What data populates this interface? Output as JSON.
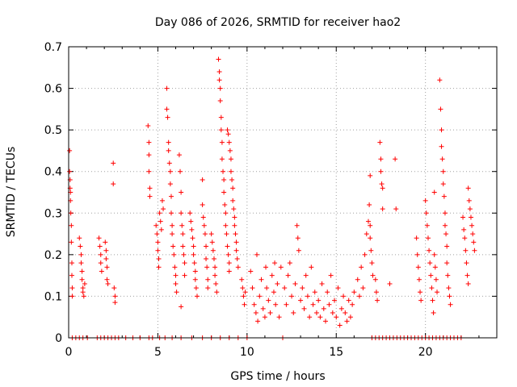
{
  "chart_data": {
    "type": "scatter",
    "title": "Day 086 of 2026, SRMTID for receiver hao2",
    "xlabel": "GPS time / hours",
    "ylabel": "SRMTID / TECUs",
    "xlim": [
      0,
      24
    ],
    "ylim": [
      0,
      0.7
    ],
    "xticks": [
      "0",
      "5",
      "10",
      "15",
      "20"
    ],
    "xtick_values": [
      0,
      5,
      10,
      15,
      20
    ],
    "yticks": [
      "0",
      "0.1",
      "0.2",
      "0.3",
      "0.4",
      "0.5",
      "0.6",
      "0.7"
    ],
    "ytick_values": [
      0,
      0.1,
      0.2,
      0.3,
      0.4,
      0.5,
      0.6,
      0.7
    ],
    "grid": true,
    "legend": "none",
    "marker": "plus",
    "color": "#ff0000",
    "series": [
      {
        "points": [
          [
            0.05,
            0.45
          ],
          [
            0.05,
            0.4
          ],
          [
            0.08,
            0.38
          ],
          [
            0.08,
            0.36
          ],
          [
            0.1,
            0.35
          ],
          [
            0.1,
            0.33
          ],
          [
            0.12,
            0.3
          ],
          [
            0.15,
            0.27
          ],
          [
            0.15,
            0.23
          ],
          [
            0.18,
            0.18
          ],
          [
            0.18,
            0.15
          ],
          [
            0.2,
            0.12
          ],
          [
            0.2,
            0.1
          ],
          [
            0.6,
            0.24
          ],
          [
            0.65,
            0.22
          ],
          [
            0.7,
            0.2
          ],
          [
            0.7,
            0.18
          ],
          [
            0.75,
            0.16
          ],
          [
            0.75,
            0.14
          ],
          [
            0.8,
            0.12
          ],
          [
            0.8,
            0.11
          ],
          [
            0.85,
            0.1
          ],
          [
            0.9,
            0.13
          ],
          [
            1.7,
            0.24
          ],
          [
            1.75,
            0.22
          ],
          [
            1.8,
            0.2
          ],
          [
            1.8,
            0.18
          ],
          [
            1.85,
            0.16
          ],
          [
            2.05,
            0.23
          ],
          [
            2.1,
            0.21
          ],
          [
            2.1,
            0.19
          ],
          [
            2.15,
            0.17
          ],
          [
            2.15,
            0.14
          ],
          [
            2.2,
            0.13
          ],
          [
            2.5,
            0.42
          ],
          [
            2.5,
            0.37
          ],
          [
            2.55,
            0.12
          ],
          [
            2.6,
            0.1
          ],
          [
            2.6,
            0.085
          ],
          [
            4.45,
            0.51
          ],
          [
            4.5,
            0.47
          ],
          [
            4.5,
            0.44
          ],
          [
            4.5,
            0.4
          ],
          [
            4.55,
            0.36
          ],
          [
            4.55,
            0.34
          ],
          [
            4.9,
            0.27
          ],
          [
            4.95,
            0.25
          ],
          [
            5.0,
            0.23
          ],
          [
            5.0,
            0.21
          ],
          [
            5.05,
            0.19
          ],
          [
            5.05,
            0.17
          ],
          [
            5.1,
            0.3
          ],
          [
            5.15,
            0.28
          ],
          [
            5.2,
            0.26
          ],
          [
            5.25,
            0.33
          ],
          [
            5.3,
            0.31
          ],
          [
            5.5,
            0.6
          ],
          [
            5.5,
            0.55
          ],
          [
            5.55,
            0.53
          ],
          [
            5.6,
            0.47
          ],
          [
            5.6,
            0.45
          ],
          [
            5.65,
            0.42
          ],
          [
            5.7,
            0.4
          ],
          [
            5.7,
            0.37
          ],
          [
            5.75,
            0.34
          ],
          [
            5.75,
            0.3
          ],
          [
            5.8,
            0.27
          ],
          [
            5.8,
            0.25
          ],
          [
            5.85,
            0.22
          ],
          [
            5.9,
            0.2
          ],
          [
            5.95,
            0.17
          ],
          [
            6.0,
            0.15
          ],
          [
            6.0,
            0.13
          ],
          [
            6.05,
            0.11
          ],
          [
            6.2,
            0.44
          ],
          [
            6.25,
            0.4
          ],
          [
            6.3,
            0.35
          ],
          [
            6.3,
            0.3
          ],
          [
            6.35,
            0.27
          ],
          [
            6.4,
            0.25
          ],
          [
            6.4,
            0.22
          ],
          [
            6.45,
            0.2
          ],
          [
            6.5,
            0.18
          ],
          [
            6.5,
            0.15
          ],
          [
            6.3,
            0.075
          ],
          [
            6.8,
            0.3
          ],
          [
            6.85,
            0.28
          ],
          [
            6.9,
            0.26
          ],
          [
            6.95,
            0.24
          ],
          [
            7.0,
            0.22
          ],
          [
            7.0,
            0.2
          ],
          [
            7.05,
            0.18
          ],
          [
            7.1,
            0.16
          ],
          [
            7.1,
            0.14
          ],
          [
            7.15,
            0.12
          ],
          [
            7.2,
            0.1
          ],
          [
            7.5,
            0.38
          ],
          [
            7.5,
            0.32
          ],
          [
            7.55,
            0.29
          ],
          [
            7.6,
            0.27
          ],
          [
            7.65,
            0.25
          ],
          [
            7.7,
            0.22
          ],
          [
            7.7,
            0.19
          ],
          [
            7.75,
            0.17
          ],
          [
            7.8,
            0.14
          ],
          [
            7.8,
            0.12
          ],
          [
            8.0,
            0.25
          ],
          [
            8.05,
            0.23
          ],
          [
            8.1,
            0.21
          ],
          [
            8.15,
            0.19
          ],
          [
            8.2,
            0.17
          ],
          [
            8.2,
            0.15
          ],
          [
            8.25,
            0.13
          ],
          [
            8.3,
            0.11
          ],
          [
            8.4,
            0.67
          ],
          [
            8.45,
            0.64
          ],
          [
            8.45,
            0.62
          ],
          [
            8.5,
            0.6
          ],
          [
            8.5,
            0.57
          ],
          [
            8.55,
            0.53
          ],
          [
            8.55,
            0.5
          ],
          [
            8.6,
            0.47
          ],
          [
            8.6,
            0.43
          ],
          [
            8.65,
            0.4
          ],
          [
            8.7,
            0.38
          ],
          [
            8.7,
            0.35
          ],
          [
            8.75,
            0.32
          ],
          [
            8.8,
            0.3
          ],
          [
            8.8,
            0.27
          ],
          [
            8.85,
            0.25
          ],
          [
            8.9,
            0.22
          ],
          [
            8.95,
            0.2
          ],
          [
            9.0,
            0.18
          ],
          [
            9.0,
            0.16
          ],
          [
            8.9,
            0.5
          ],
          [
            8.95,
            0.49
          ],
          [
            9.0,
            0.47
          ],
          [
            9.05,
            0.45
          ],
          [
            9.1,
            0.43
          ],
          [
            9.1,
            0.4
          ],
          [
            9.15,
            0.38
          ],
          [
            9.2,
            0.36
          ],
          [
            9.2,
            0.33
          ],
          [
            9.25,
            0.31
          ],
          [
            9.3,
            0.29
          ],
          [
            9.3,
            0.27
          ],
          [
            9.35,
            0.25
          ],
          [
            9.4,
            0.23
          ],
          [
            9.4,
            0.21
          ],
          [
            9.45,
            0.19
          ],
          [
            9.5,
            0.17
          ],
          [
            9.7,
            0.14
          ],
          [
            9.75,
            0.12
          ],
          [
            9.8,
            0.1
          ],
          [
            9.85,
            0.08
          ],
          [
            9.9,
            0.11
          ],
          [
            10.2,
            0.16
          ],
          [
            10.3,
            0.12
          ],
          [
            10.4,
            0.08
          ],
          [
            10.5,
            0.06
          ],
          [
            10.6,
            0.04
          ],
          [
            10.7,
            0.1
          ],
          [
            10.8,
            0.14
          ],
          [
            10.9,
            0.07
          ],
          [
            11.0,
            0.05
          ],
          [
            11.1,
            0.12
          ],
          [
            11.2,
            0.09
          ],
          [
            11.3,
            0.06
          ],
          [
            11.4,
            0.15
          ],
          [
            11.5,
            0.11
          ],
          [
            11.6,
            0.08
          ],
          [
            11.7,
            0.13
          ],
          [
            11.8,
            0.05
          ],
          [
            11.9,
            0.17
          ],
          [
            10.55,
            0.2
          ],
          [
            11.05,
            0.17
          ],
          [
            11.55,
            0.18
          ],
          [
            12.1,
            0.12
          ],
          [
            12.2,
            0.08
          ],
          [
            12.3,
            0.15
          ],
          [
            12.4,
            0.18
          ],
          [
            12.5,
            0.1
          ],
          [
            12.6,
            0.06
          ],
          [
            12.7,
            0.13
          ],
          [
            12.8,
            0.27
          ],
          [
            12.85,
            0.24
          ],
          [
            12.9,
            0.21
          ],
          [
            13.0,
            0.09
          ],
          [
            13.1,
            0.12
          ],
          [
            13.2,
            0.07
          ],
          [
            13.3,
            0.15
          ],
          [
            13.4,
            0.1
          ],
          [
            13.5,
            0.05
          ],
          [
            13.6,
            0.17
          ],
          [
            13.7,
            0.08
          ],
          [
            13.8,
            0.11
          ],
          [
            13.9,
            0.06
          ],
          [
            14.0,
            0.09
          ],
          [
            14.1,
            0.05
          ],
          [
            14.2,
            0.13
          ],
          [
            14.3,
            0.07
          ],
          [
            14.4,
            0.04
          ],
          [
            14.5,
            0.11
          ],
          [
            14.6,
            0.08
          ],
          [
            14.7,
            0.15
          ],
          [
            14.8,
            0.06
          ],
          [
            14.9,
            0.09
          ],
          [
            15.0,
            0.05
          ],
          [
            15.1,
            0.12
          ],
          [
            15.2,
            0.03
          ],
          [
            15.3,
            0.07
          ],
          [
            15.4,
            0.1
          ],
          [
            15.5,
            0.06
          ],
          [
            15.6,
            0.04
          ],
          [
            15.7,
            0.09
          ],
          [
            15.8,
            0.05
          ],
          [
            15.9,
            0.08
          ],
          [
            16.0,
            0.11
          ],
          [
            16.2,
            0.14
          ],
          [
            16.3,
            0.1
          ],
          [
            16.4,
            0.17
          ],
          [
            16.5,
            0.12
          ],
          [
            16.6,
            0.2
          ],
          [
            16.7,
            0.25
          ],
          [
            16.8,
            0.28
          ],
          [
            16.85,
            0.32
          ],
          [
            16.9,
            0.27
          ],
          [
            16.9,
            0.24
          ],
          [
            16.95,
            0.21
          ],
          [
            17.0,
            0.18
          ],
          [
            17.05,
            0.15
          ],
          [
            16.9,
            0.39
          ],
          [
            17.2,
            0.14
          ],
          [
            17.25,
            0.11
          ],
          [
            17.3,
            0.09
          ],
          [
            17.45,
            0.47
          ],
          [
            17.5,
            0.43
          ],
          [
            17.5,
            0.4
          ],
          [
            17.55,
            0.37
          ],
          [
            17.6,
            0.36
          ],
          [
            17.6,
            0.31
          ],
          [
            18.3,
            0.43
          ],
          [
            18.35,
            0.31
          ],
          [
            18.0,
            0.13
          ],
          [
            19.5,
            0.24
          ],
          [
            19.55,
            0.2
          ],
          [
            19.6,
            0.17
          ],
          [
            19.65,
            0.14
          ],
          [
            19.7,
            0.11
          ],
          [
            19.75,
            0.09
          ],
          [
            20.0,
            0.33
          ],
          [
            20.05,
            0.3
          ],
          [
            20.1,
            0.27
          ],
          [
            20.15,
            0.24
          ],
          [
            20.2,
            0.21
          ],
          [
            20.25,
            0.18
          ],
          [
            20.3,
            0.15
          ],
          [
            20.35,
            0.12
          ],
          [
            20.4,
            0.09
          ],
          [
            20.45,
            0.06
          ],
          [
            20.5,
            0.35
          ],
          [
            20.5,
            0.2
          ],
          [
            20.55,
            0.17
          ],
          [
            20.6,
            0.14
          ],
          [
            20.65,
            0.11
          ],
          [
            20.8,
            0.62
          ],
          [
            20.85,
            0.55
          ],
          [
            20.9,
            0.5
          ],
          [
            20.9,
            0.46
          ],
          [
            20.95,
            0.43
          ],
          [
            21.0,
            0.4
          ],
          [
            21.0,
            0.37
          ],
          [
            21.05,
            0.34
          ],
          [
            21.1,
            0.3
          ],
          [
            21.1,
            0.27
          ],
          [
            21.15,
            0.25
          ],
          [
            21.2,
            0.22
          ],
          [
            21.2,
            0.18
          ],
          [
            21.25,
            0.15
          ],
          [
            21.3,
            0.12
          ],
          [
            21.35,
            0.1
          ],
          [
            21.4,
            0.08
          ],
          [
            22.1,
            0.29
          ],
          [
            22.15,
            0.26
          ],
          [
            22.2,
            0.24
          ],
          [
            22.25,
            0.21
          ],
          [
            22.3,
            0.18
          ],
          [
            22.35,
            0.15
          ],
          [
            22.4,
            0.13
          ],
          [
            22.4,
            0.36
          ],
          [
            22.45,
            0.33
          ],
          [
            22.5,
            0.31
          ],
          [
            22.55,
            0.29
          ],
          [
            22.6,
            0.27
          ],
          [
            22.65,
            0.25
          ],
          [
            22.7,
            0.23
          ],
          [
            22.75,
            0.21
          ]
        ],
        "zeros_x": [
          0.2,
          0.4,
          0.6,
          0.8,
          1.05,
          1.6,
          1.8,
          2.0,
          2.2,
          2.4,
          2.6,
          2.8,
          3.2,
          3.6,
          4.0,
          4.5,
          4.7,
          5.1,
          5.4,
          5.8,
          6.3,
          6.9,
          7.5,
          8.0,
          8.5,
          9.0,
          9.5,
          10.0,
          12.0,
          17.0,
          17.2,
          17.4,
          17.6,
          17.8,
          18.0,
          18.2,
          18.4,
          18.6,
          18.8,
          19.0,
          19.2,
          19.4,
          19.6,
          19.8,
          20.0,
          20.2,
          20.4,
          20.6,
          20.8,
          21.0,
          21.2,
          21.4,
          21.6,
          21.8,
          22.0
        ]
      }
    ]
  }
}
